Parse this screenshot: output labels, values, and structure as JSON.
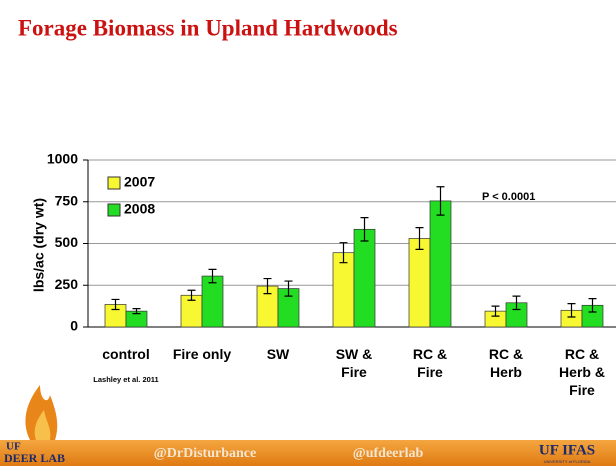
{
  "chart_data": {
    "type": "bar",
    "title": "Forage Biomass in Upland Hardwoods",
    "ylabel": "lbs/ac (dry wt)",
    "categories": [
      "control",
      "Fire only",
      "SW",
      "SW & Fire",
      "RC & Fire",
      "RC & Herb",
      "RC & Herb & Fire"
    ],
    "series": [
      {
        "name": "2007",
        "color": "#f7f732",
        "values": [
          135,
          190,
          245,
          445,
          530,
          95,
          100
        ],
        "errors": [
          30,
          30,
          45,
          60,
          65,
          30,
          40
        ]
      },
      {
        "name": "2008",
        "color": "#22dd22",
        "values": [
          95,
          305,
          230,
          585,
          755,
          145,
          130
        ],
        "errors": [
          15,
          40,
          45,
          70,
          85,
          40,
          40
        ]
      }
    ],
    "ylim": [
      0,
      1000
    ],
    "yticks": [
      0,
      250,
      500,
      750,
      1000
    ],
    "grid": true,
    "annotations": [
      "P < 0.0001",
      "Lashley et al. 2011"
    ]
  },
  "footer": {
    "logo_top": "UF",
    "logo_bottom": "DEER LAB",
    "handle_1": "@DrDisturbance",
    "handle_2": "@ufdeerlab",
    "brand": "UF IFAS",
    "brand_sub": "UNIVERSITY of FLORIDA"
  }
}
